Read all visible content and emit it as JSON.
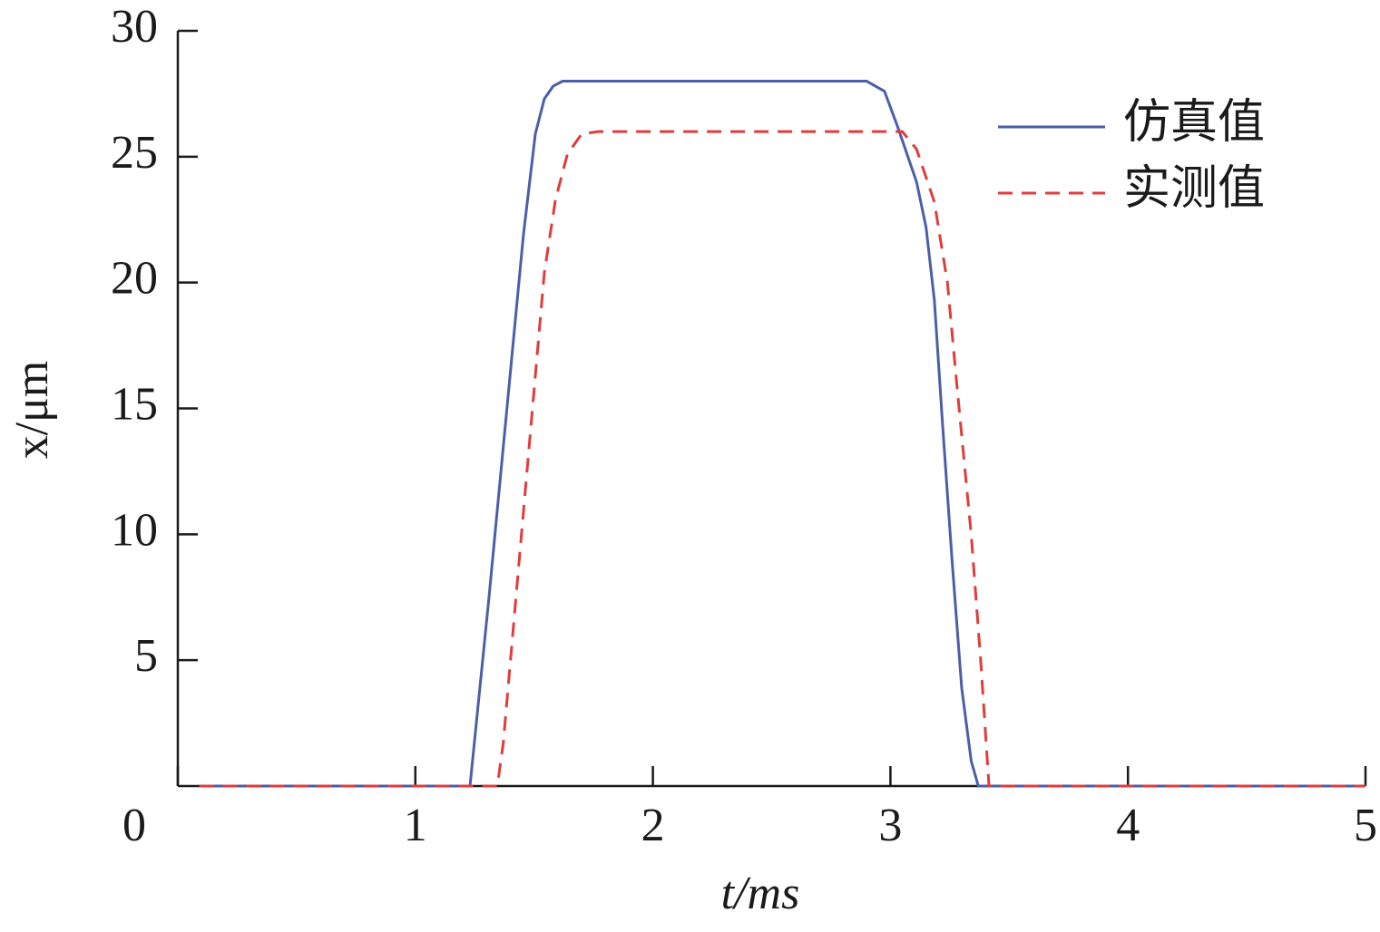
{
  "chart_data": {
    "type": "line",
    "xlabel": "t/ms",
    "ylabel": "x/μm",
    "xlim": [
      0,
      5
    ],
    "xticks": [
      0,
      1,
      2,
      3,
      4,
      5
    ],
    "ylim": [
      0,
      30
    ],
    "yticks": [
      5,
      10,
      15,
      20,
      25,
      30
    ],
    "legend": "upper right",
    "series": [
      {
        "name": "仿真值",
        "color": "#4a5fa8",
        "dash": "solid",
        "x": [
          0.1,
          1.2,
          1.23,
          1.31,
          1.455,
          1.505,
          1.543,
          1.58,
          1.62,
          2.9,
          2.975,
          3.03,
          3.11,
          3.15,
          3.185,
          3.22,
          3.26,
          3.3,
          3.34,
          3.37,
          5.0
        ],
        "values": [
          0,
          0,
          0,
          7.5,
          21.9,
          25.9,
          27.3,
          27.8,
          28,
          28,
          27.6,
          26.2,
          24,
          22.2,
          19.3,
          14.3,
          8.9,
          3.9,
          1,
          0,
          0
        ]
      },
      {
        "name": "实测值",
        "color": "#e03c3c",
        "dash": "dashed",
        "x": [
          0.09,
          1.345,
          1.37,
          1.543,
          1.59,
          1.64,
          1.7,
          1.77,
          3.05,
          3.11,
          3.185,
          3.24,
          3.28,
          3.34,
          3.38,
          3.415,
          5.0
        ],
        "values": [
          0,
          0,
          1.7,
          20.4,
          23.3,
          25.1,
          25.9,
          26,
          26,
          25.3,
          23.2,
          20,
          15.9,
          10,
          5,
          0,
          0
        ]
      }
    ]
  }
}
